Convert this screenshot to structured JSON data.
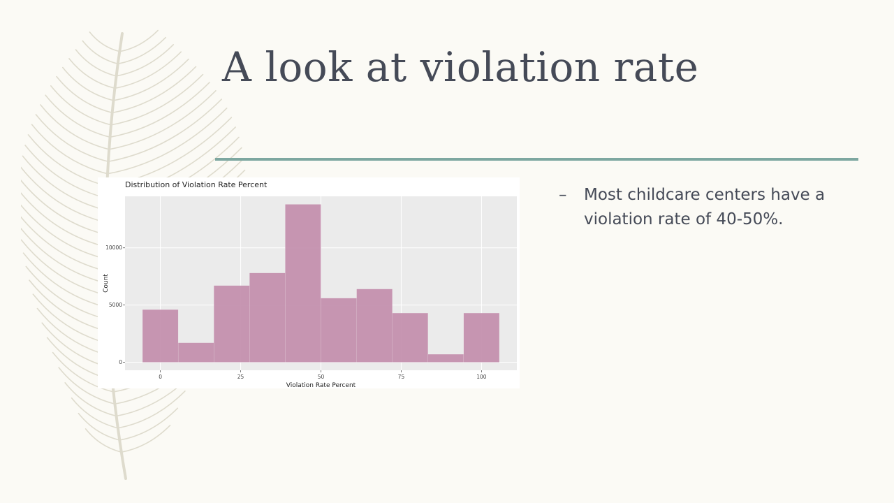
{
  "slide": {
    "title": "A look at violation rate",
    "bullets": [
      {
        "marker": "–",
        "text": "Most childcare centers have a violation rate of 40-50%."
      }
    ]
  },
  "colors": {
    "background": "#fbfaf5",
    "title": "#454a57",
    "accent_rule": "#7da7a0",
    "bar_fill": "#c490ae",
    "plot_background": "#ebebeb",
    "feather": "#dedbcd"
  },
  "decoration": {
    "icon": "feather-icon"
  },
  "chart_data": {
    "type": "bar",
    "title": "Distribution of Violation Rate Percent",
    "xlabel": "Violation Rate Percent",
    "ylabel": "Count",
    "xlim": [
      -11,
      111
    ],
    "ylim": [
      -700,
      14500
    ],
    "x_ticks": [
      0,
      25,
      50,
      75,
      100
    ],
    "y_ticks": [
      0,
      5000,
      10000
    ],
    "bin_width": 11.11,
    "bin_centers": [
      0,
      11.11,
      22.22,
      33.33,
      44.44,
      55.56,
      66.67,
      77.78,
      88.89,
      100
    ],
    "values": [
      4600,
      1700,
      6700,
      7800,
      13800,
      5600,
      6400,
      4300,
      700,
      4300
    ],
    "grid": true,
    "legend": "none"
  }
}
